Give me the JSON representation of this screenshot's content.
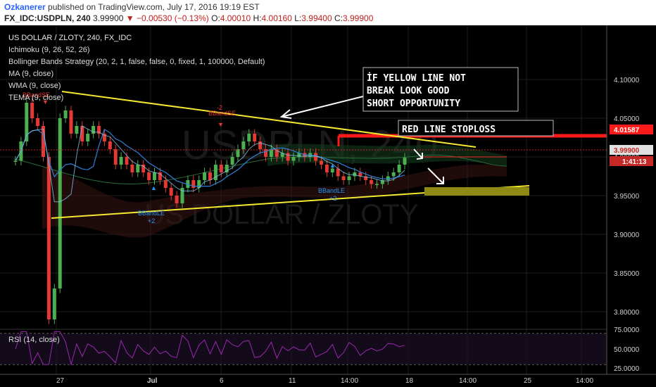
{
  "header": {
    "author": "Ozkanerer",
    "published": "published on TradingView.com, July 17, 2016 19:19 EST",
    "symbol": "FX_IDC:USDPLN, 240",
    "price": "3.99900",
    "change": "−0.00530 (−0.13%)",
    "o_label": "O:",
    "o_value": "4.00010",
    "h_label": "H:",
    "h_value": "4.00160",
    "l_label": "L:",
    "l_value": "3.99400",
    "c_label": "C:",
    "c_value": "3.99900"
  },
  "legend": {
    "title": "US DOLLAR / ZLOTY, 240, FX_IDC",
    "items": [
      "Ichimoku (9, 26, 52, 26)",
      "Bollinger Bands Strategy (20, 2, 1, false, false, 0, fixed, 1, 100000, Default)",
      "MA (9, close)",
      "WMA (9, close)",
      "TEMA (9, close)"
    ]
  },
  "rsi": {
    "label": "RSI (14, close)",
    "ticks": [
      "75.0000",
      "50.0000",
      "25.0000"
    ]
  },
  "price_axis": {
    "ticks": [
      "4.10000",
      "4.05000",
      "4.00000",
      "3.95000",
      "3.90000",
      "3.85000",
      "3.80000"
    ],
    "tick_values": [
      4.1,
      4.05,
      4.0,
      3.95,
      3.9,
      3.85,
      3.8
    ],
    "stoploss_label": "4.01587",
    "current_label": "3.99900",
    "countdown_label": "1:41:13"
  },
  "time_axis": {
    "ticks": [
      "27",
      "Jul",
      "6",
      "11",
      "14:00",
      "18",
      "14:00",
      "25",
      "14:00"
    ]
  },
  "annotations": {
    "note1": [
      "İF YELLOW LINE NOT",
      "BREAK LOOK GOOD",
      "SHORT OPPORTUNITY"
    ],
    "note2": "RED LINE STOPLOSS"
  },
  "signals": {
    "bbandse_1": "BBandSE",
    "bbandse_1_qty": "-2",
    "bbandse_2": "BBandSE",
    "bbandse_2_qty": "-2",
    "bbandle_1": "BBandLE",
    "bbandle_1_qty": "+2",
    "bbandle_2": "BBandLE",
    "bbandle_2_qty": "+2"
  },
  "watermark": {
    "symbol": "USDPLN, 240",
    "name": "US DOLLAR / ZLOTY"
  },
  "colors": {
    "background": "#000000",
    "up_candle": "#4caf50",
    "down_candle": "#e53935",
    "trendline": "#f5e930",
    "stoploss": "#ff1a1a",
    "target_box": "#8f8a13",
    "rsi_line": "#9c27b0"
  },
  "chart_data": {
    "type": "candlestick",
    "title": "US DOLLAR / ZLOTY, 240, FX_IDC",
    "ylim": [
      3.78,
      4.13
    ],
    "close": [
      3.995,
      4.02,
      4.07,
      4.05,
      4.04,
      4.0,
      3.79,
      3.83,
      4.05,
      4.06,
      4.03,
      4.04,
      4.02,
      4.03,
      4.04,
      4.03,
      4.02,
      4.01,
      3.99,
      4.0,
      3.99,
      3.98,
      3.99,
      3.98,
      3.97,
      3.98,
      3.97,
      3.96,
      3.95,
      3.94,
      3.96,
      3.97,
      3.96,
      3.97,
      3.98,
      3.97,
      3.99,
      3.98,
      3.99,
      4.0,
      4.01,
      4.02,
      4.03,
      4.02,
      4.01,
      4.0,
      4.01,
      4.0,
      4.005,
      3.995,
      4.0,
      4.005,
      4.0,
      4.005,
      3.995,
      3.99,
      3.98,
      3.985,
      3.975,
      3.97,
      3.975,
      3.98,
      3.975,
      3.97,
      3.965,
      3.965,
      3.97,
      3.975,
      3.98,
      3.99,
      3.999
    ],
    "stoploss_level": 4.01587,
    "current_price": 3.999,
    "trendline_upper": {
      "from": [
        4.07,
        4.017
      ],
      "to_price": 4.003
    },
    "trendline_lower": {
      "from_price": 3.913,
      "to_price": 3.955
    },
    "target_zone": [
      3.943,
      3.955
    ]
  }
}
